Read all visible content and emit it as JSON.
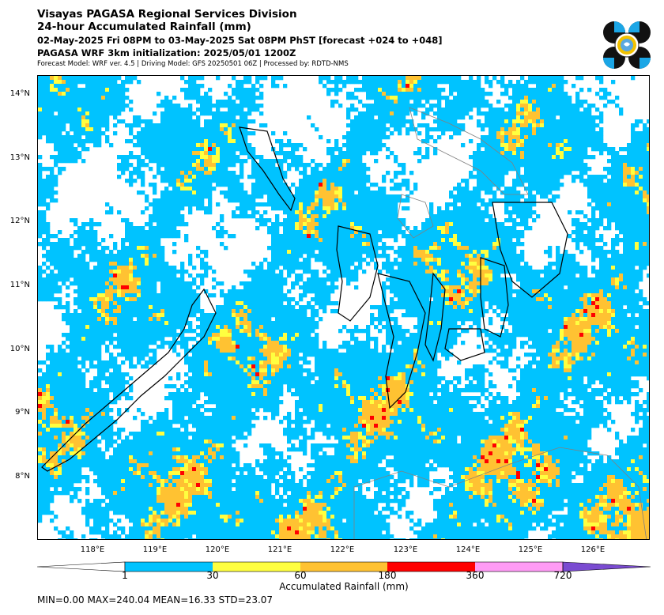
{
  "header": {
    "title": "Visayas PAGASA Regional Services Division",
    "subtitle": "24-hour Accumulated Rainfall (mm)",
    "period": "02-May-2025 Fri 08PM to 03-May-2025 Sat 08PM PhST [forecast +024 to +048]",
    "init": "PAGASA WRF 3km initialization: 2025/05/01 1200Z",
    "model": "Forecast Model: WRF ver. 4.5 | Driving Model: GFS 20250501 06Z | Processed by: RDTD-NMS"
  },
  "map": {
    "lat_ticks": [
      "14°N",
      "13°N",
      "12°N",
      "11°N",
      "10°N",
      "9°N",
      "8°N"
    ],
    "lon_ticks": [
      "118°E",
      "119°E",
      "120°E",
      "121°E",
      "122°E",
      "123°E",
      "124°E",
      "125°E",
      "126°E"
    ],
    "colors": {
      "land_outline": "#000000",
      "province_outline": "#808080",
      "no_rain": "#ffffff"
    }
  },
  "colorbar": {
    "label": "Accumulated Rainfall (mm)",
    "ticks": [
      "1",
      "30",
      "60",
      "180",
      "360",
      "720"
    ],
    "bins": [
      {
        "color": "#ffffff"
      },
      {
        "color": "#00c3ff"
      },
      {
        "color": "#ffff40"
      },
      {
        "color": "#ffc232"
      },
      {
        "color": "#ff0000"
      },
      {
        "color": "#ff9bf5"
      },
      {
        "color": "#7a4bd1"
      }
    ]
  },
  "stats": {
    "text": "MIN=0.00   MAX=240.04   MEAN=16.33   STD=23.07"
  }
}
